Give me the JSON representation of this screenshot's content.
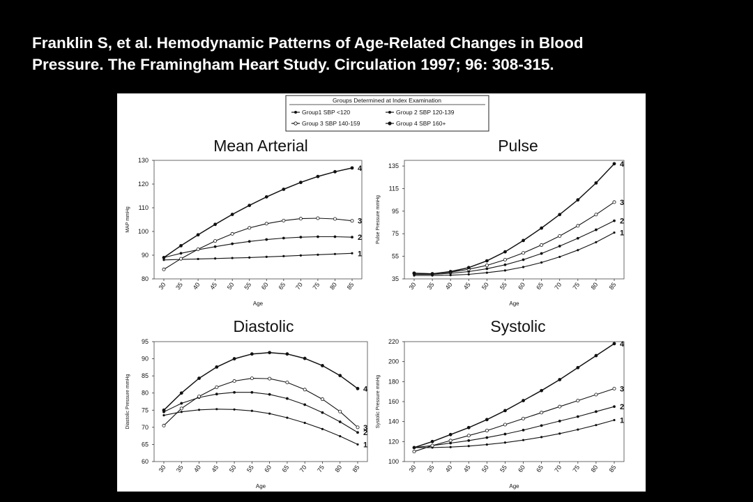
{
  "citation": {
    "line1": "Franklin S, et al. Hemodynamic Patterns of Age-Related Changes in Blood",
    "line2": "Pressure. The Framingham Heart Study. Circulation 1997; 96: 308-315."
  },
  "legend": {
    "title": "Groups Determined at Index Examination",
    "entries": [
      "Group1 SBP <120",
      "Group 2 SBP 120-139",
      "Group 3 SBP 140-159",
      "Group 4 SBP 160+"
    ]
  },
  "chart_data": [
    {
      "type": "line",
      "title": "Mean Arterial",
      "xlabel": "Age",
      "ylabel": "MAP mmHg",
      "x": [
        30,
        35,
        40,
        45,
        50,
        55,
        60,
        65,
        70,
        75,
        80,
        85
      ],
      "ylim": [
        80,
        130
      ],
      "yticks": [
        80,
        90,
        100,
        110,
        120,
        130
      ],
      "series": [
        {
          "name": "1",
          "values": [
            88,
            88.2,
            88.4,
            88.6,
            88.8,
            89,
            89.3,
            89.6,
            89.9,
            90.2,
            90.5,
            90.8
          ]
        },
        {
          "name": "2",
          "values": [
            89,
            90.8,
            92.3,
            93.6,
            94.8,
            95.8,
            96.6,
            97.2,
            97.6,
            97.8,
            97.8,
            97.6
          ]
        },
        {
          "name": "3",
          "values": [
            84,
            88.5,
            92.5,
            96,
            99,
            101.5,
            103.3,
            104.6,
            105.4,
            105.6,
            105.3,
            104.5
          ]
        },
        {
          "name": "4",
          "values": [
            89,
            94,
            98.6,
            103,
            107.2,
            111,
            114.6,
            117.8,
            120.7,
            123.2,
            125.2,
            126.8
          ]
        }
      ]
    },
    {
      "type": "line",
      "title": "Pulse",
      "xlabel": "Age",
      "ylabel": "Pulse Pressure mmHg",
      "x": [
        30,
        35,
        40,
        45,
        50,
        55,
        60,
        65,
        70,
        75,
        80,
        85
      ],
      "ylim": [
        35,
        140
      ],
      "yticks": [
        35,
        55,
        75,
        95,
        115,
        135
      ],
      "series": [
        {
          "name": "1",
          "values": [
            38,
            38,
            38.3,
            39,
            40.5,
            42.5,
            45.5,
            49.5,
            54.5,
            60.5,
            67.5,
            76
          ]
        },
        {
          "name": "2",
          "values": [
            39,
            39,
            40,
            41.5,
            44,
            47.5,
            52,
            57.5,
            64,
            71,
            78.5,
            86.5
          ]
        },
        {
          "name": "3",
          "values": [
            40,
            39.5,
            41,
            43.5,
            47,
            52,
            58,
            65,
            73,
            82,
            92,
            103
          ]
        },
        {
          "name": "4",
          "values": [
            40,
            39.5,
            41.5,
            45,
            51,
            59,
            69,
            80,
            92,
            105,
            120,
            137
          ]
        }
      ]
    },
    {
      "type": "line",
      "title": "Diastolic",
      "xlabel": "Age",
      "ylabel": "Diastolic Pressure mmHg",
      "x": [
        30,
        35,
        40,
        45,
        50,
        55,
        60,
        65,
        70,
        75,
        80,
        85
      ],
      "ylim": [
        60,
        95
      ],
      "yticks": [
        60,
        65,
        70,
        75,
        80,
        85,
        90,
        95
      ],
      "series": [
        {
          "name": "1",
          "values": [
            73.5,
            74.5,
            75.1,
            75.3,
            75.2,
            74.8,
            74,
            72.8,
            71.3,
            69.5,
            67.4,
            65
          ]
        },
        {
          "name": "2",
          "values": [
            74.5,
            77,
            78.7,
            79.7,
            80.2,
            80.2,
            79.6,
            78.4,
            76.6,
            74.3,
            71.6,
            68.5
          ]
        },
        {
          "name": "3",
          "values": [
            70.5,
            75.5,
            79,
            81.7,
            83.5,
            84.3,
            84.2,
            83.1,
            81,
            78.2,
            74.6,
            70
          ]
        },
        {
          "name": "4",
          "values": [
            75,
            80,
            84.3,
            87.6,
            90,
            91.4,
            91.8,
            91.4,
            90.1,
            88,
            85.1,
            81.3
          ]
        }
      ]
    },
    {
      "type": "line",
      "title": "Systolic",
      "xlabel": "Age",
      "ylabel": "Systolic Pressure mmHg",
      "x": [
        30,
        35,
        40,
        45,
        50,
        55,
        60,
        65,
        70,
        75,
        80,
        85
      ],
      "ylim": [
        100,
        220
      ],
      "yticks": [
        100,
        120,
        140,
        160,
        180,
        200,
        220
      ],
      "series": [
        {
          "name": "1",
          "values": [
            114,
            114,
            114.5,
            115.5,
            117,
            119,
            121.5,
            124.5,
            128,
            132,
            136.5,
            141.5
          ]
        },
        {
          "name": "2",
          "values": [
            114,
            116,
            118.5,
            121,
            124,
            127.5,
            131.5,
            136,
            140.5,
            145,
            150,
            155
          ]
        },
        {
          "name": "3",
          "values": [
            110,
            116,
            121,
            126,
            131,
            137,
            143,
            149,
            155,
            161,
            167,
            173
          ]
        },
        {
          "name": "4",
          "values": [
            114,
            120,
            127,
            134,
            142,
            151,
            161,
            171,
            182,
            194,
            206,
            218
          ]
        }
      ]
    }
  ]
}
